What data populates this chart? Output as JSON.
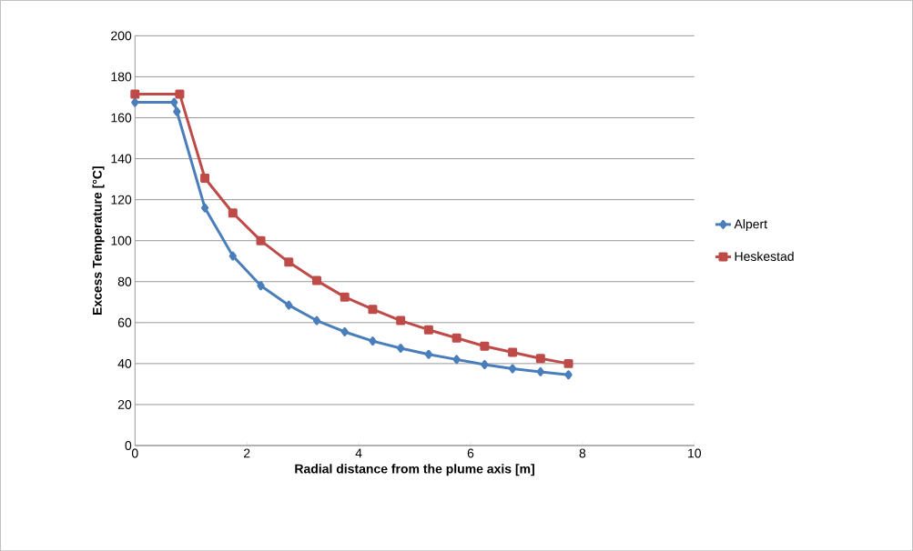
{
  "chart_data": {
    "type": "line",
    "xlabel": "Radial distance from the plume axis [m]",
    "ylabel": "Excess Temperature [°C]",
    "xlim": [
      0,
      10
    ],
    "xticks": [
      0,
      2,
      4,
      6,
      8,
      10
    ],
    "ylim": [
      0,
      200
    ],
    "yticks": [
      0,
      20,
      40,
      60,
      80,
      100,
      120,
      140,
      160,
      180,
      200
    ],
    "grid": "y",
    "legend": "right",
    "line_style": "solid",
    "series": [
      {
        "name": "Alpert",
        "color": "#4a7ebb",
        "marker": "diamond",
        "x": [
          0,
          0.7,
          0.75,
          1.25,
          1.75,
          2.25,
          2.75,
          3.25,
          3.75,
          4.25,
          4.75,
          5.25,
          5.75,
          6.25,
          6.75,
          7.25,
          7.75
        ],
        "values": [
          167.5,
          167.5,
          163,
          116,
          92.5,
          78,
          68.5,
          61,
          55.5,
          51,
          47.5,
          44.5,
          42,
          39.5,
          37.5,
          36,
          34.5
        ]
      },
      {
        "name": "Heskestad",
        "color": "#be4b48",
        "marker": "square",
        "x": [
          0,
          0.8,
          1.25,
          1.75,
          2.25,
          2.75,
          3.25,
          3.75,
          4.25,
          4.75,
          5.25,
          5.75,
          6.25,
          6.75,
          7.25,
          7.75
        ],
        "values": [
          171.5,
          171.5,
          130.5,
          113.5,
          100,
          89.5,
          80.5,
          72.5,
          66.5,
          61,
          56.5,
          52.5,
          48.5,
          45.5,
          42.5,
          40
        ]
      }
    ]
  }
}
